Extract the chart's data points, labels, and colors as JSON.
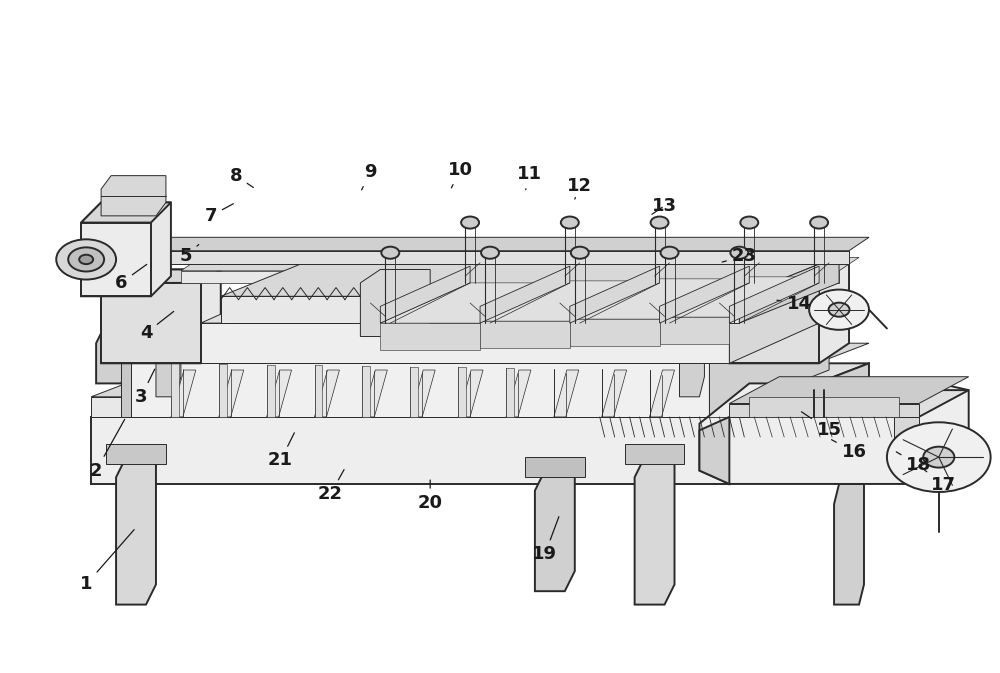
{
  "bg_color": "#ffffff",
  "lc": "#2a2a2a",
  "fc_light": "#f5f5f5",
  "fc_mid": "#e0e0e0",
  "fc_dark": "#c8c8c8",
  "fc_darker": "#b0b0b0",
  "lw_main": 1.4,
  "lw_thin": 0.7,
  "lw_thick": 2.0,
  "fontsize": 13,
  "label_color": "#1a1a1a",
  "labels": [
    [
      1,
      0.085,
      0.13,
      0.135,
      0.215
    ],
    [
      2,
      0.095,
      0.3,
      0.125,
      0.38
    ],
    [
      3,
      0.14,
      0.41,
      0.155,
      0.455
    ],
    [
      4,
      0.145,
      0.505,
      0.175,
      0.54
    ],
    [
      5,
      0.185,
      0.62,
      0.2,
      0.64
    ],
    [
      6,
      0.12,
      0.58,
      0.148,
      0.61
    ],
    [
      7,
      0.21,
      0.68,
      0.235,
      0.7
    ],
    [
      8,
      0.235,
      0.74,
      0.255,
      0.72
    ],
    [
      9,
      0.37,
      0.745,
      0.36,
      0.715
    ],
    [
      10,
      0.46,
      0.748,
      0.45,
      0.718
    ],
    [
      11,
      0.53,
      0.742,
      0.525,
      0.715
    ],
    [
      12,
      0.58,
      0.725,
      0.575,
      0.705
    ],
    [
      13,
      0.665,
      0.695,
      0.65,
      0.68
    ],
    [
      14,
      0.8,
      0.548,
      0.775,
      0.555
    ],
    [
      15,
      0.83,
      0.36,
      0.8,
      0.39
    ],
    [
      16,
      0.855,
      0.328,
      0.83,
      0.348
    ],
    [
      17,
      0.945,
      0.278,
      0.918,
      0.31
    ],
    [
      18,
      0.92,
      0.308,
      0.895,
      0.33
    ],
    [
      19,
      0.545,
      0.175,
      0.56,
      0.235
    ],
    [
      20,
      0.43,
      0.252,
      0.43,
      0.29
    ],
    [
      21,
      0.28,
      0.315,
      0.295,
      0.36
    ],
    [
      22,
      0.33,
      0.265,
      0.345,
      0.305
    ],
    [
      23,
      0.745,
      0.62,
      0.72,
      0.61
    ]
  ]
}
